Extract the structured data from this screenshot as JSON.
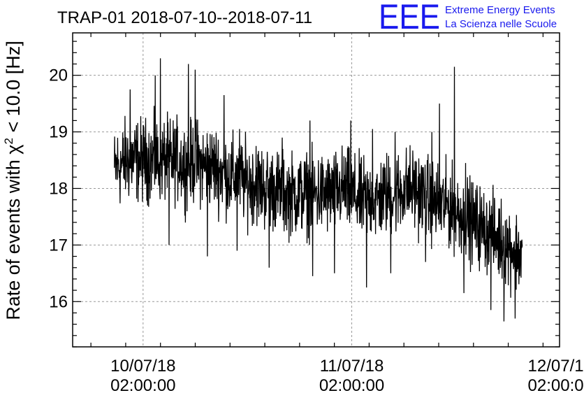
{
  "header": {
    "title": "TRAP-01 2018-07-10--2018-07-11",
    "logo_mark": "EEE",
    "logo_line1": "Extreme Energy Events",
    "logo_line2": "La Scienza nelle Scuole",
    "logo_color": "#1a1aee"
  },
  "chart_data": {
    "type": "line",
    "title": "TRAP-01 2018-07-10--2018-07-11",
    "ylabel_prefix": "Rate of events with ",
    "ylabel_symbol": "χ",
    "ylabel_sup": "2",
    "ylabel_suffix": " < 10.0 [Hz]",
    "xlabel": "",
    "ylim": [
      15.2,
      20.75
    ],
    "y_ticks": [
      16,
      17,
      18,
      19,
      20
    ],
    "y_tick_labels": [
      "16",
      "17",
      "18",
      "19",
      "20"
    ],
    "x_ticks": [
      {
        "date": "10/07/18",
        "time": "02:00:00"
      },
      {
        "date": "11/07/18",
        "time": "02:00:00"
      },
      {
        "date": "12/07/18",
        "time": "02:00:00"
      }
    ],
    "x_tick_hours": [
      26,
      50,
      74
    ],
    "xlim_hours": [
      17.9,
      73.9
    ],
    "grid": true,
    "line_color": "#000000",
    "series": [
      {
        "x_hours": [
          22.7,
          23.0,
          23.5,
          24.0,
          25.0,
          26.0,
          27.0,
          28.0,
          29.0,
          30.0,
          31.0,
          32.0,
          33.0,
          34.0,
          35.0,
          36.0,
          37.0,
          38.0,
          39.0,
          40.0,
          41.0,
          42.0,
          43.0,
          44.0,
          45.0,
          46.0,
          47.0,
          48.0,
          49.0,
          50.0,
          51.0,
          52.0,
          53.0,
          54.0,
          55.0,
          56.0,
          57.0,
          58.0,
          59.0,
          60.0,
          61.0,
          62.0,
          63.0,
          64.0,
          65.0,
          66.0,
          67.0,
          68.0,
          69.0,
          69.6
        ],
        "values": [
          18.3,
          18.4,
          18.4,
          18.5,
          18.5,
          18.5,
          18.5,
          18.5,
          18.5,
          18.5,
          18.4,
          18.5,
          18.4,
          18.4,
          18.3,
          18.2,
          18.2,
          18.1,
          18.1,
          18.0,
          18.0,
          17.9,
          17.9,
          17.9,
          17.9,
          17.9,
          17.9,
          17.9,
          18.0,
          17.9,
          17.8,
          17.8,
          17.8,
          17.9,
          17.9,
          18.0,
          18.0,
          17.9,
          17.8,
          17.7,
          17.7,
          17.6,
          17.5,
          17.4,
          17.3,
          17.2,
          17.1,
          17.0,
          16.9,
          16.8
        ],
        "noise_amplitude": 0.55,
        "spikes": [
          {
            "x": 24.5,
            "y": 19.75
          },
          {
            "x": 27.4,
            "y": 20.0
          },
          {
            "x": 28.0,
            "y": 20.3
          },
          {
            "x": 31.2,
            "y": 20.2
          },
          {
            "x": 32.0,
            "y": 20.1
          },
          {
            "x": 35.3,
            "y": 19.65
          },
          {
            "x": 37.1,
            "y": 19.05
          },
          {
            "x": 39.0,
            "y": 18.75
          },
          {
            "x": 42.0,
            "y": 18.9
          },
          {
            "x": 45.2,
            "y": 19.2
          },
          {
            "x": 49.9,
            "y": 19.2
          },
          {
            "x": 52.4,
            "y": 19.05
          },
          {
            "x": 55.0,
            "y": 19.0
          },
          {
            "x": 59.2,
            "y": 19.0
          },
          {
            "x": 60.1,
            "y": 19.5
          },
          {
            "x": 61.8,
            "y": 20.15
          },
          {
            "x": 63.1,
            "y": 18.45
          },
          {
            "x": 29.0,
            "y": 17.0
          },
          {
            "x": 33.4,
            "y": 16.8
          },
          {
            "x": 36.8,
            "y": 16.9
          },
          {
            "x": 40.5,
            "y": 16.6
          },
          {
            "x": 45.5,
            "y": 16.45
          },
          {
            "x": 48.0,
            "y": 16.5
          },
          {
            "x": 51.7,
            "y": 16.25
          },
          {
            "x": 54.5,
            "y": 16.5
          },
          {
            "x": 58.5,
            "y": 16.7
          },
          {
            "x": 62.9,
            "y": 16.15
          },
          {
            "x": 66.0,
            "y": 15.85
          },
          {
            "x": 67.5,
            "y": 15.65
          },
          {
            "x": 68.8,
            "y": 15.7
          }
        ]
      }
    ]
  }
}
